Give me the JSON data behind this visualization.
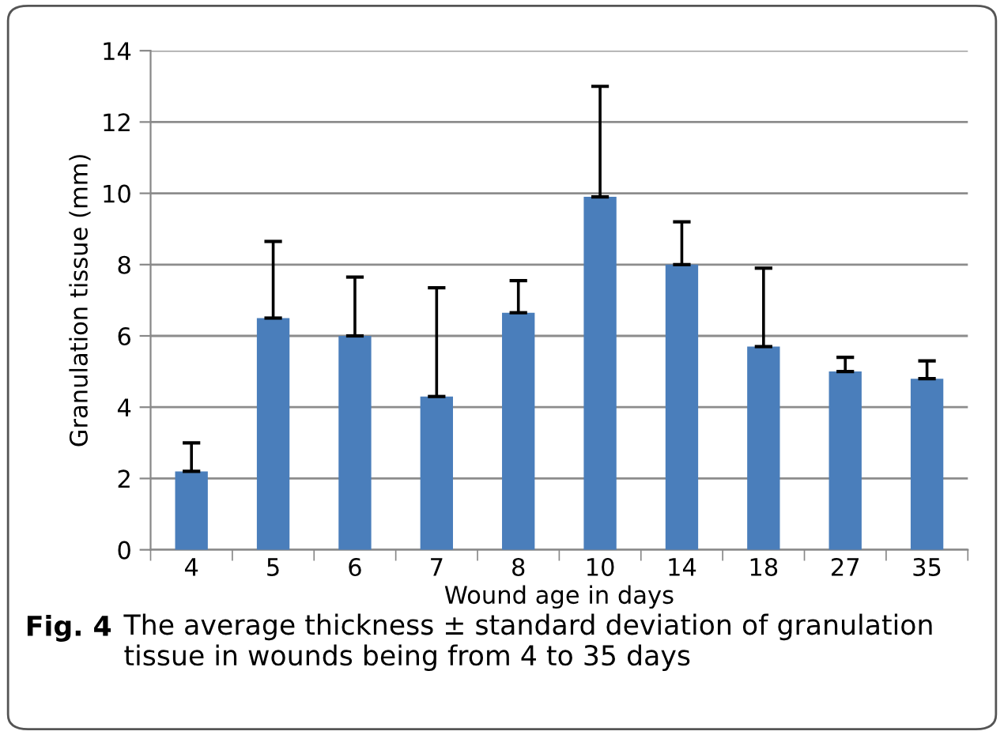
{
  "chart_data": {
    "type": "bar",
    "xlabel": "Wound age in days",
    "ylabel": "Granulation tissue (mm)",
    "categories": [
      "4",
      "5",
      "6",
      "7",
      "8",
      "10",
      "14",
      "18",
      "27",
      "35"
    ],
    "values": [
      2.2,
      6.5,
      6.0,
      4.3,
      6.65,
      9.9,
      8.0,
      5.7,
      5.0,
      4.8
    ],
    "errors": [
      [
        2.2,
        3.0
      ],
      [
        6.5,
        8.65
      ],
      [
        6.0,
        7.65
      ],
      [
        4.3,
        7.35
      ],
      [
        6.65,
        7.55
      ],
      [
        9.9,
        13.0
      ],
      [
        8.0,
        9.2
      ],
      [
        5.7,
        7.9
      ],
      [
        5.0,
        5.4
      ],
      [
        4.8,
        5.3
      ]
    ],
    "color": "#4a7ebb",
    "ylim": [
      0,
      14
    ],
    "yticks": [
      0,
      2,
      4,
      6,
      8,
      10,
      12,
      14
    ],
    "grid": "y",
    "annotations": [
      "Fig. 4",
      "The average thickness ± standard deviation of granulation tissue in wounds being from 4 to 35 days"
    ]
  }
}
